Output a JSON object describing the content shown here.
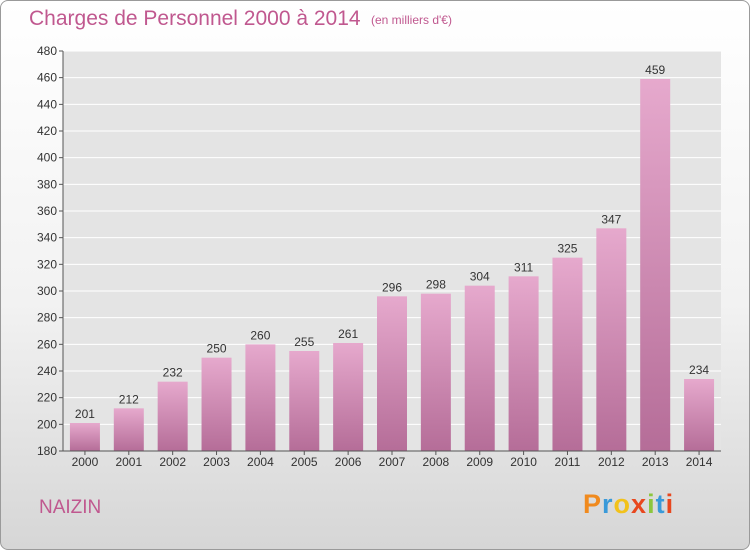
{
  "title": "Charges de Personnel 2000 à 2014",
  "subtitle": "(en milliers d'€)",
  "commune": "NAIZIN",
  "logo": {
    "letters": [
      "P",
      "r",
      "o",
      "x",
      "i",
      "t",
      "i"
    ],
    "colors": [
      "#f08a1e",
      "#3a9ad9",
      "#f2c21b",
      "#e8471e",
      "#8cc63e",
      "#3a9ad9",
      "#e8471e"
    ]
  },
  "colors": {
    "accent": "#c0588f",
    "bar_top": "#e6a9cd",
    "bar_bottom": "#b56d98",
    "grid": "#ffffff"
  },
  "chart_data": {
    "type": "bar",
    "categories": [
      "2000",
      "2001",
      "2002",
      "2003",
      "2004",
      "2005",
      "2006",
      "2007",
      "2008",
      "2009",
      "2010",
      "2011",
      "2012",
      "2013",
      "2014"
    ],
    "values": [
      201,
      212,
      232,
      250,
      260,
      255,
      261,
      296,
      298,
      304,
      311,
      325,
      347,
      459,
      234
    ],
    "ylim": [
      180,
      480
    ],
    "ytick_step": 20,
    "grid": true,
    "data_labels": true
  }
}
